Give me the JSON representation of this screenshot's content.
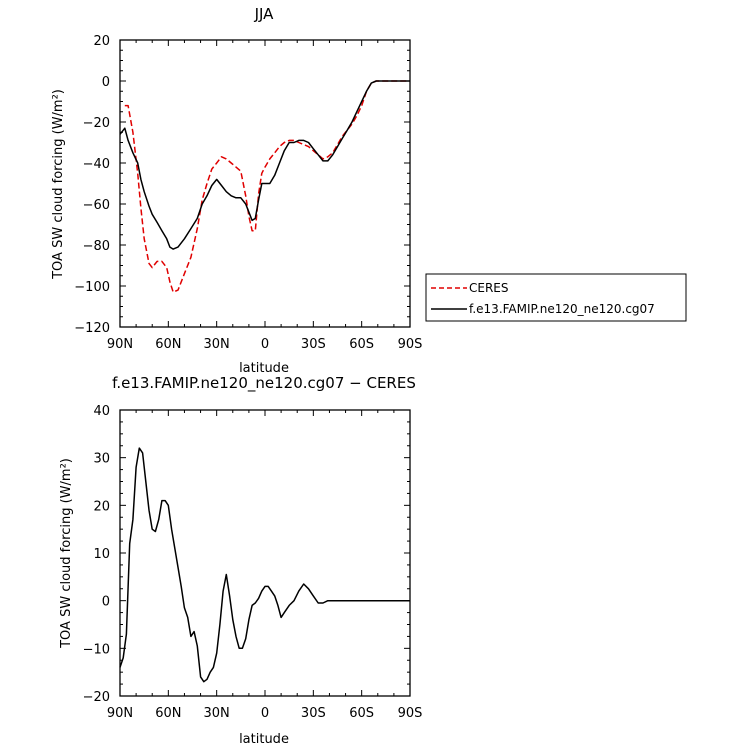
{
  "chart_data": [
    {
      "type": "line",
      "title": "JJA",
      "xlabel": "latitude",
      "ylabel": "TOA SW cloud forcing (W/m²)",
      "xlim": [
        90,
        -90
      ],
      "ylim": [
        -120,
        20
      ],
      "xticks": [
        90,
        60,
        30,
        0,
        -30,
        -60,
        -90
      ],
      "xtick_labels": [
        "90N",
        "60N",
        "30N",
        "0",
        "30S",
        "60S",
        "90S"
      ],
      "yticks": [
        20,
        0,
        -20,
        -40,
        -60,
        -80,
        -100,
        -120
      ],
      "ytick_labels": [
        "20",
        "0",
        "−20",
        "−40",
        "−60",
        "−80",
        "−100",
        "−120"
      ],
      "legend_position": "right",
      "series": [
        {
          "name": "CERES",
          "color": "#e00000",
          "dash": "dashed",
          "x": [
            87,
            85,
            82,
            79,
            77,
            75,
            72,
            70,
            67,
            64,
            61,
            59,
            57,
            54,
            50,
            46,
            42,
            39,
            36,
            33,
            30,
            27,
            24,
            21,
            18,
            15,
            12,
            10,
            8,
            6,
            4,
            2,
            0,
            -3,
            -6,
            -9,
            -12,
            -15,
            -18,
            -21,
            -24,
            -27,
            -30,
            -33,
            -36,
            -39,
            -42,
            -45,
            -48,
            -51,
            -54,
            -57,
            -60,
            -63,
            -66,
            -69,
            -72,
            -75,
            -80,
            -85,
            -90
          ],
          "y": [
            -12,
            -12,
            -25,
            -45,
            -62,
            -77,
            -89,
            -91,
            -88,
            -88,
            -91,
            -98,
            -103,
            -102,
            -94,
            -86,
            -72,
            -58,
            -50,
            -43,
            -40,
            -37,
            -38,
            -40,
            -42,
            -44,
            -56,
            -66,
            -73,
            -73,
            -55,
            -45,
            -42,
            -38,
            -35,
            -32,
            -30,
            -29,
            -29,
            -30,
            -31,
            -32,
            -34,
            -36,
            -38,
            -37,
            -35,
            -31,
            -27,
            -24,
            -21,
            -17,
            -12,
            -5,
            -1,
            0,
            0,
            0,
            0,
            0,
            0
          ]
        },
        {
          "name": "f.e13.FAMIP.ne120_ne120.cg07",
          "color": "#000000",
          "dash": "solid",
          "x": [
            90,
            87,
            85,
            82,
            79,
            77,
            75,
            72,
            70,
            67,
            64,
            61,
            59,
            57,
            54,
            50,
            46,
            42,
            39,
            36,
            33,
            30,
            27,
            24,
            21,
            18,
            15,
            12,
            10,
            8,
            6,
            4,
            2,
            0,
            -3,
            -6,
            -9,
            -12,
            -15,
            -18,
            -21,
            -24,
            -27,
            -30,
            -33,
            -36,
            -39,
            -42,
            -45,
            -48,
            -51,
            -54,
            -57,
            -60,
            -63,
            -66,
            -69,
            -72,
            -75,
            -80,
            -85,
            -90
          ],
          "y": [
            -26,
            -23,
            -29,
            -35,
            -40,
            -48,
            -54,
            -61,
            -65,
            -69,
            -73,
            -77,
            -81,
            -82,
            -81,
            -77,
            -72,
            -67,
            -60,
            -56,
            -51,
            -48,
            -51,
            -54,
            -56,
            -57,
            -57,
            -60,
            -64,
            -68,
            -67,
            -58,
            -50,
            -50,
            -50,
            -46,
            -40,
            -34,
            -30,
            -30,
            -29,
            -29,
            -30,
            -33,
            -36,
            -39,
            -39,
            -36,
            -32,
            -28,
            -24,
            -20,
            -15,
            -10,
            -5,
            -1,
            0,
            0,
            0,
            0,
            0,
            0
          ]
        }
      ]
    },
    {
      "type": "line",
      "title": "f.e13.FAMIP.ne120_ne120.cg07 − CERES",
      "xlabel": "latitude",
      "ylabel": "TOA SW cloud forcing (W/m²)",
      "xlim": [
        90,
        -90
      ],
      "ylim": [
        -20,
        40
      ],
      "xticks": [
        90,
        60,
        30,
        0,
        -30,
        -60,
        -90
      ],
      "xtick_labels": [
        "90N",
        "60N",
        "30N",
        "0",
        "30S",
        "60S",
        "90S"
      ],
      "yticks": [
        40,
        30,
        20,
        10,
        0,
        -10,
        -20
      ],
      "ytick_labels": [
        "40",
        "30",
        "20",
        "10",
        "0",
        "−10",
        "−20"
      ],
      "series": [
        {
          "color": "#000000",
          "dash": "solid",
          "x": [
            90,
            88,
            86,
            84,
            82,
            80,
            78,
            76,
            74,
            72,
            70,
            68,
            66,
            64,
            62,
            60,
            58,
            56,
            54,
            52,
            50,
            48,
            46,
            44,
            42,
            40,
            38,
            36,
            34,
            32,
            30,
            28,
            26,
            24,
            22,
            20,
            18,
            16,
            14,
            12,
            10,
            8,
            6,
            4,
            2,
            0,
            -2,
            -4,
            -6,
            -8,
            -10,
            -12,
            -15,
            -18,
            -21,
            -24,
            -27,
            -30,
            -33,
            -36,
            -39,
            -42,
            -45,
            -48,
            -51,
            -54,
            -57,
            -60,
            -63,
            -66,
            -69,
            -72,
            -75,
            -80,
            -85,
            -90
          ],
          "y": [
            -14,
            -12,
            -7,
            12,
            17,
            28,
            32,
            31,
            25,
            19,
            15,
            14.5,
            17,
            21,
            21,
            20,
            15,
            11,
            7,
            3,
            -1.5,
            -3.5,
            -7.5,
            -6.5,
            -9.5,
            -16,
            -17,
            -16.5,
            -15,
            -14,
            -11,
            -5,
            2,
            5.5,
            1,
            -4,
            -7.5,
            -10,
            -10,
            -8,
            -4,
            -1,
            -0.5,
            0.5,
            2,
            3,
            3,
            2,
            1,
            -1,
            -3.5,
            -2.5,
            -1,
            0,
            2,
            3.5,
            2.5,
            1,
            -0.5,
            -0.5,
            0,
            0,
            0,
            0,
            0,
            0,
            0,
            0,
            0,
            0,
            0,
            0,
            0,
            0,
            0,
            0
          ]
        }
      ]
    }
  ]
}
